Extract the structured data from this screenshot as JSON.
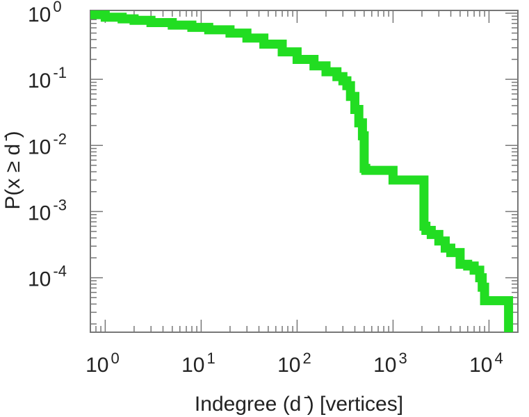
{
  "chart_data": {
    "type": "line",
    "scale": {
      "x": "log",
      "y": "log"
    },
    "xlabel": "Indegree (d ̄) [vertices]",
    "ylabel": "P(x ≥ d ̄)",
    "xlim": [
      0.7,
      20000
    ],
    "ylim": [
      1.5e-05,
      1.1
    ],
    "grid": false,
    "line_color": "#22dd22",
    "x_ticks": [
      {
        "value": 1,
        "base": "10",
        "exp": "0"
      },
      {
        "value": 10,
        "base": "10",
        "exp": "1"
      },
      {
        "value": 100,
        "base": "10",
        "exp": "2"
      },
      {
        "value": 1000,
        "base": "10",
        "exp": "3"
      },
      {
        "value": 10000,
        "base": "10",
        "exp": "4"
      }
    ],
    "y_ticks": [
      {
        "value": 1,
        "base": "10",
        "exp": "0"
      },
      {
        "value": 0.1,
        "base": "10",
        "exp": "-1"
      },
      {
        "value": 0.01,
        "base": "10",
        "exp": "-2"
      },
      {
        "value": 0.001,
        "base": "10",
        "exp": "-3"
      },
      {
        "value": 0.0001,
        "base": "10",
        "exp": "-4"
      }
    ],
    "series": [
      {
        "x": [
          0.7,
          1,
          1.5,
          2,
          3,
          5,
          8,
          12,
          20,
          30,
          45,
          70,
          100,
          150,
          200,
          260,
          300,
          330,
          360,
          400,
          440,
          480,
          500,
          520,
          700,
          1000,
          1500,
          2000,
          2100,
          2200,
          2500,
          3000,
          3500,
          4000,
          5000,
          6000,
          7000,
          8000,
          8500,
          9000,
          12000,
          15000,
          16000
        ],
        "y": [
          0.95,
          0.87,
          0.82,
          0.78,
          0.72,
          0.66,
          0.61,
          0.56,
          0.5,
          0.42,
          0.34,
          0.26,
          0.2,
          0.16,
          0.13,
          0.11,
          0.095,
          0.08,
          0.055,
          0.035,
          0.022,
          0.014,
          0.0045,
          0.0042,
          0.0042,
          0.003,
          0.003,
          0.003,
          0.0006,
          0.00052,
          0.00045,
          0.00036,
          0.00028,
          0.00024,
          0.00016,
          0.00015,
          0.00013,
          0.0001,
          7.2e-05,
          4.5e-05,
          4.5e-05,
          4.5e-05,
          1.5e-05
        ]
      }
    ]
  }
}
